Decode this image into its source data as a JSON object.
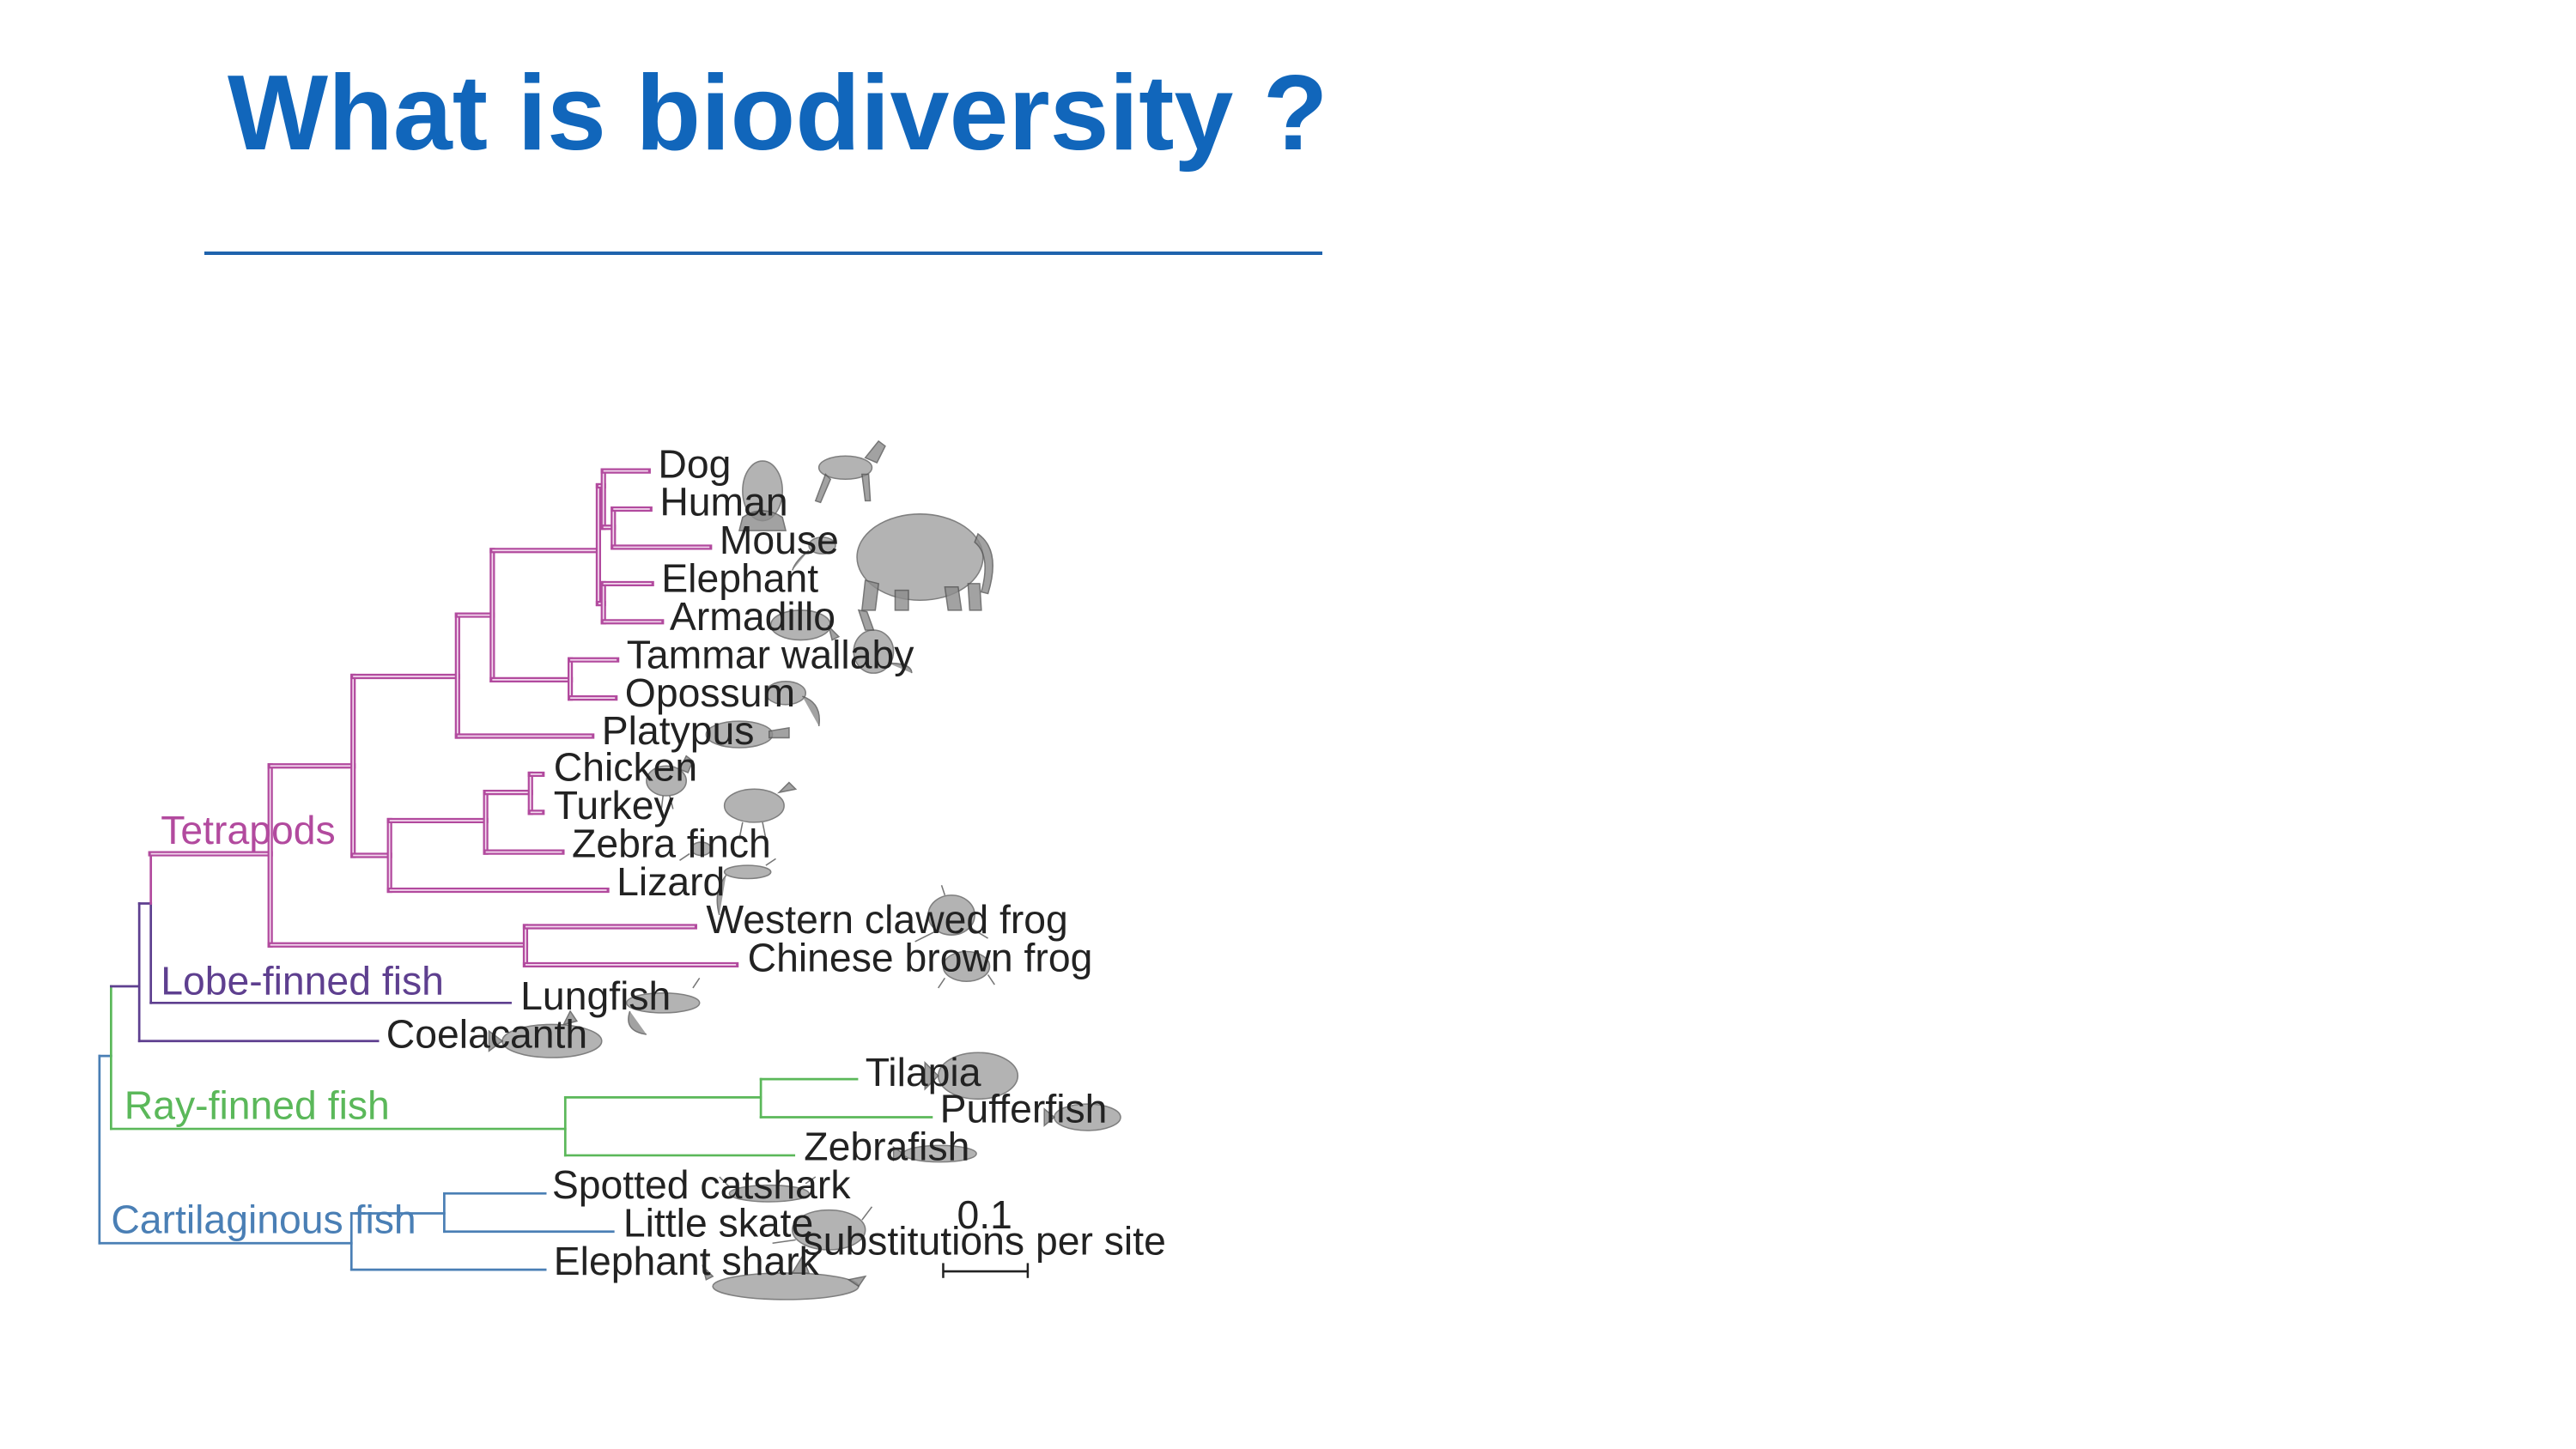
{
  "slide": {
    "title": "What is biodiversity ?"
  },
  "tree": {
    "leaves": {
      "dog": "Dog",
      "human": "Human",
      "mouse": "Mouse",
      "elephant": "Elephant",
      "armadillo": "Armadillo",
      "tammar_wallaby": "Tammar wallaby",
      "opossum": "Opossum",
      "platypus": "Platypus",
      "chicken": "Chicken",
      "turkey": "Turkey",
      "zebra_finch": "Zebra finch",
      "lizard": "Lizard",
      "western_clawed_frog": "Western clawed frog",
      "chinese_brown_frog": "Chinese brown frog",
      "lungfish": "Lungfish",
      "coelacanth": "Coelacanth",
      "tilapia": "Tilapia",
      "pufferfish": "Pufferfish",
      "zebrafish": "Zebrafish",
      "spotted_catshark": "Spotted catshark",
      "little_skate": "Little skate",
      "elephant_shark": "Elephant shark"
    },
    "clades": {
      "tetrapods": "Tetrapods",
      "lobe_finned_fish": "Lobe-finned fish",
      "ray_finned_fish": "Ray-finned fish",
      "cartilaginous_fish": "Cartilaginous fish"
    },
    "clade_colors": {
      "tetrapods": "#b24a9e",
      "lobe_finned_fish": "#5e3f8f",
      "ray_finned_fish": "#5bb85a",
      "cartilaginous_fish": "#4a7fb5"
    },
    "scale_bar": {
      "value": "0.1",
      "unit": "substitutions per site"
    }
  }
}
